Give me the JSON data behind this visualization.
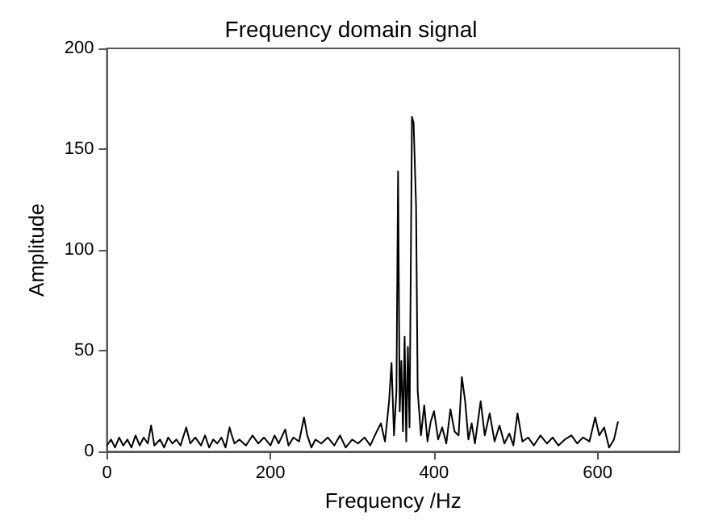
{
  "chart_data": {
    "type": "line",
    "title": "Frequency domain signal",
    "xlabel": "Frequency /Hz",
    "ylabel": "Amplitude",
    "xlim": [
      0,
      700
    ],
    "ylim": [
      0,
      200
    ],
    "xticks": [
      0,
      200,
      400,
      600
    ],
    "yticks": [
      0,
      50,
      100,
      150,
      200
    ],
    "grid": false,
    "marker": "none",
    "line_style": "solid",
    "series": [
      {
        "color": "#000000",
        "x": [
          0,
          5,
          10,
          15,
          20,
          25,
          30,
          35,
          40,
          45,
          50,
          54,
          58,
          65,
          70,
          75,
          80,
          85,
          90,
          97,
          102,
          108,
          115,
          120,
          125,
          130,
          135,
          140,
          145,
          150,
          152,
          156,
          162,
          170,
          178,
          185,
          192,
          200,
          205,
          210,
          218,
          222,
          228,
          235,
          241,
          245,
          250,
          255,
          262,
          270,
          278,
          285,
          292,
          300,
          307,
          315,
          322,
          330,
          335,
          340,
          345,
          348,
          351,
          354,
          356,
          358,
          360,
          362,
          364,
          366,
          368,
          370,
          373,
          375,
          378,
          380,
          384,
          388,
          392,
          396,
          400,
          405,
          410,
          415,
          420,
          425,
          430,
          434,
          438,
          442,
          446,
          450,
          457,
          462,
          468,
          474,
          480,
          486,
          492,
          497,
          502,
          508,
          515,
          522,
          530,
          538,
          545,
          552,
          560,
          568,
          575,
          582,
          590,
          597,
          602,
          608,
          614,
          620,
          625
        ],
        "values": [
          3,
          6,
          2,
          7,
          3,
          6,
          2,
          8,
          3,
          7,
          4,
          13,
          3,
          6,
          2,
          7,
          4,
          6,
          3,
          12,
          4,
          7,
          3,
          8,
          2,
          6,
          4,
          7,
          2,
          12,
          9,
          4,
          6,
          3,
          8,
          4,
          7,
          3,
          8,
          4,
          11,
          3,
          7,
          5,
          17,
          8,
          2,
          6,
          4,
          7,
          3,
          8,
          2,
          6,
          4,
          7,
          3,
          10,
          14,
          5,
          25,
          44,
          8,
          30,
          139,
          20,
          45,
          10,
          57,
          5,
          52,
          12,
          166,
          163,
          122,
          30,
          8,
          23,
          5,
          15,
          20,
          6,
          12,
          4,
          21,
          10,
          8,
          37,
          25,
          6,
          14,
          4,
          25,
          8,
          19,
          5,
          13,
          4,
          9,
          3,
          19,
          5,
          7,
          3,
          8,
          4,
          7,
          3,
          6,
          8,
          4,
          7,
          5,
          17,
          8,
          12,
          2,
          6,
          15
        ]
      }
    ]
  }
}
